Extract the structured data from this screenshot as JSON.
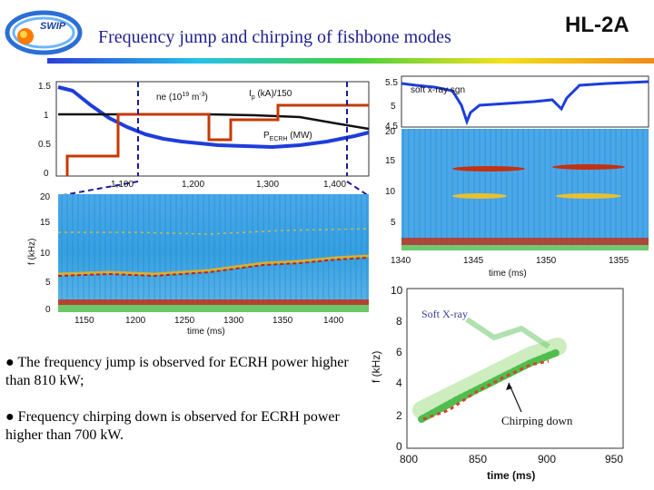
{
  "header": {
    "title": "Frequency jump and chirping of fishbone modes",
    "tag": "HL-2A",
    "logo_text": "SWIP"
  },
  "panel_left_top": {
    "y_ticks": [
      "1.5",
      "1",
      "0.5",
      "0"
    ],
    "x_ticks": [
      "1,100",
      "1,200",
      "1,300",
      "1,400"
    ],
    "label_ne": "ne (10",
    "label_ne_exp": "19",
    "label_ne_unit": "m",
    "label_ne_unit_exp": "-3",
    "label_ne_close": ")",
    "label_ip": "I",
    "label_ip_sub": "p",
    "label_ip_rest": " (kA)/150",
    "label_p": "P",
    "label_p_sub": "ECRH",
    "label_p_rest": " (MW)"
  },
  "panel_left_bottom": {
    "y_ticks": [
      "20",
      "15",
      "10",
      "5",
      "0"
    ],
    "x_ticks": [
      "1150",
      "1200",
      "1250",
      "1300",
      "1350",
      "1400"
    ],
    "ylabel": "f (kHz)",
    "xlabel": "time (ms)"
  },
  "panel_right_top": {
    "signal_label": "soft x-ray sgn",
    "signal_ticks": [
      "5.5",
      "5",
      "4.5"
    ],
    "y_ticks": [
      "20",
      "15",
      "10",
      "5"
    ],
    "x_ticks": [
      "1340",
      "1345",
      "1350",
      "1355"
    ],
    "xlabel": "time (ms)"
  },
  "panel_right_bottom": {
    "y_ticks": [
      "10",
      "8",
      "6",
      "4",
      "2",
      "0"
    ],
    "x_ticks": [
      "800",
      "850",
      "900",
      "950"
    ],
    "ylabel": "f (kHz)",
    "xlabel": "time (ms)",
    "annotation_top": "Soft X-ray",
    "annotation_arrow": "Chirping down"
  },
  "bullets": [
    "● The frequency jump is observed for  ECRH power higher than 810 kW;",
    "● Frequency chirping down is observed for ECRH power higher than 700 kW."
  ],
  "colors": {
    "title": "#1f1f8f",
    "trace_blue": "#1e3ddb",
    "trace_red": "#c43a00",
    "marker_blue": "#1a1a9a"
  }
}
